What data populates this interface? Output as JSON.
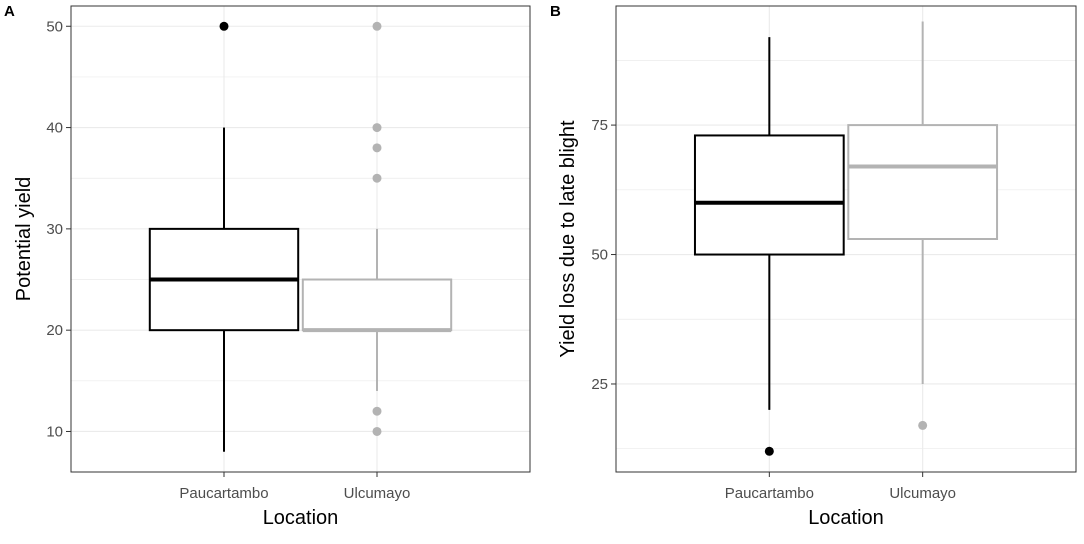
{
  "chart_data": [
    {
      "panel": "A",
      "type": "box",
      "xlabel": "Location",
      "ylabel": "Potential yield",
      "ylim": [
        6,
        52
      ],
      "yticks": [
        10,
        20,
        30,
        40,
        50
      ],
      "categories": [
        "Paucartambo",
        "Ulcumayo"
      ],
      "boxes": [
        {
          "category": "Paucartambo",
          "color": "#000000",
          "whisker_low": 8,
          "q1": 20,
          "median": 25,
          "q3": 30,
          "whisker_high": 40,
          "outliers": [
            50
          ]
        },
        {
          "category": "Ulcumayo",
          "color": "#b3b3b3",
          "whisker_low": 14,
          "q1": 20,
          "median": 20,
          "q3": 25,
          "whisker_high": 30,
          "outliers": [
            10,
            12,
            35,
            38,
            40,
            50
          ]
        }
      ],
      "grid": true
    },
    {
      "panel": "B",
      "type": "box",
      "xlabel": "Location",
      "ylabel": "Yield loss due to late blight",
      "ylim": [
        8,
        98
      ],
      "yticks": [
        25,
        50,
        75
      ],
      "categories": [
        "Paucartambo",
        "Ulcumayo"
      ],
      "boxes": [
        {
          "category": "Paucartambo",
          "color": "#000000",
          "whisker_low": 20,
          "q1": 50,
          "median": 60,
          "q3": 73,
          "whisker_high": 92,
          "outliers": [
            12
          ]
        },
        {
          "category": "Ulcumayo",
          "color": "#b3b3b3",
          "whisker_low": 25,
          "q1": 53,
          "median": 67,
          "q3": 75,
          "whisker_high": 95,
          "outliers": [
            17
          ]
        }
      ],
      "grid": true
    }
  ]
}
